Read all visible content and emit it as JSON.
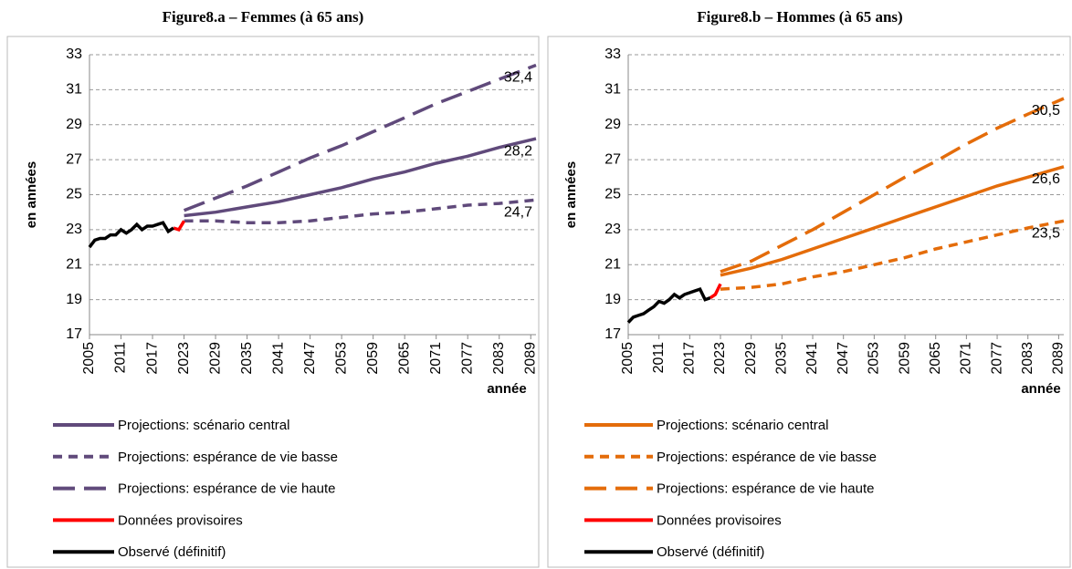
{
  "chart_data": [
    {
      "type": "line",
      "title": "Figure8.a – Femmes (à 65 ans)",
      "y_label": "en années",
      "x_label": "année",
      "xlim": [
        2005,
        2090
      ],
      "xticks": [
        2005,
        2011,
        2017,
        2023,
        2029,
        2035,
        2041,
        2047,
        2053,
        2059,
        2065,
        2071,
        2077,
        2083,
        2089
      ],
      "ylim": [
        17,
        33
      ],
      "yticks": [
        17,
        19,
        21,
        23,
        25,
        27,
        29,
        31,
        33
      ],
      "grid": true,
      "series": [
        {
          "name": "Projections: scénario central",
          "color": "#604a7b",
          "dash": "solid",
          "x": [
            2023,
            2029,
            2035,
            2041,
            2047,
            2053,
            2059,
            2065,
            2071,
            2077,
            2083,
            2090
          ],
          "values": [
            23.8,
            24.0,
            24.3,
            24.6,
            25.0,
            25.4,
            25.9,
            26.3,
            26.8,
            27.2,
            27.7,
            28.2
          ]
        },
        {
          "name": "Projections: espérance de vie basse",
          "color": "#604a7b",
          "dash": "dashed",
          "x": [
            2023,
            2029,
            2035,
            2041,
            2047,
            2053,
            2059,
            2065,
            2071,
            2077,
            2083,
            2090
          ],
          "values": [
            23.5,
            23.5,
            23.4,
            23.4,
            23.5,
            23.7,
            23.9,
            24.0,
            24.2,
            24.4,
            24.5,
            24.7
          ]
        },
        {
          "name": "Projections: espérance de vie haute",
          "color": "#604a7b",
          "dash": "longdash",
          "x": [
            2023,
            2029,
            2035,
            2041,
            2047,
            2053,
            2059,
            2065,
            2071,
            2077,
            2083,
            2090
          ],
          "values": [
            24.1,
            24.8,
            25.5,
            26.3,
            27.1,
            27.8,
            28.6,
            29.4,
            30.2,
            30.9,
            31.6,
            32.4
          ]
        },
        {
          "name": "Données provisoires",
          "color": "#ff0000",
          "dash": "solid",
          "x": [
            2021,
            2022,
            2023
          ],
          "values": [
            23.1,
            23.0,
            23.5
          ]
        },
        {
          "name": "Observé (définitif)",
          "color": "#000000",
          "dash": "solid",
          "x": [
            2005,
            2006,
            2007,
            2008,
            2009,
            2010,
            2011,
            2012,
            2013,
            2014,
            2015,
            2016,
            2017,
            2018,
            2019,
            2020,
            2021
          ],
          "values": [
            22.0,
            22.4,
            22.5,
            22.5,
            22.7,
            22.7,
            23.0,
            22.8,
            23.0,
            23.3,
            23.0,
            23.2,
            23.2,
            23.3,
            23.4,
            22.9,
            23.1
          ]
        }
      ],
      "annotations": [
        {
          "x": 2090,
          "y": 32.4,
          "label": "32,4"
        },
        {
          "x": 2090,
          "y": 28.2,
          "label": "28,2"
        },
        {
          "x": 2090,
          "y": 24.7,
          "label": "24,7"
        }
      ]
    },
    {
      "type": "line",
      "title": "Figure8.b – Hommes (à 65 ans)",
      "y_label": "en années",
      "x_label": "année",
      "xlim": [
        2005,
        2090
      ],
      "xticks": [
        2005,
        2011,
        2017,
        2023,
        2029,
        2035,
        2041,
        2047,
        2053,
        2059,
        2065,
        2071,
        2077,
        2083,
        2089
      ],
      "ylim": [
        17,
        33
      ],
      "yticks": [
        17,
        19,
        21,
        23,
        25,
        27,
        29,
        31,
        33
      ],
      "grid": true,
      "series": [
        {
          "name": "Projections: scénario central",
          "color": "#e46c0a",
          "dash": "solid",
          "x": [
            2023,
            2029,
            2035,
            2041,
            2047,
            2053,
            2059,
            2065,
            2071,
            2077,
            2083,
            2090
          ],
          "values": [
            20.4,
            20.8,
            21.3,
            21.9,
            22.5,
            23.1,
            23.7,
            24.3,
            24.9,
            25.5,
            26.0,
            26.6
          ]
        },
        {
          "name": "Projections: espérance de vie basse",
          "color": "#e46c0a",
          "dash": "dashed",
          "x": [
            2023,
            2029,
            2035,
            2041,
            2047,
            2053,
            2059,
            2065,
            2071,
            2077,
            2083,
            2090
          ],
          "values": [
            19.6,
            19.7,
            19.9,
            20.3,
            20.6,
            21.0,
            21.4,
            21.9,
            22.3,
            22.7,
            23.1,
            23.5
          ]
        },
        {
          "name": "Projections: espérance de vie haute",
          "color": "#e46c0a",
          "dash": "longdash",
          "x": [
            2023,
            2029,
            2035,
            2041,
            2047,
            2053,
            2059,
            2065,
            2071,
            2077,
            2083,
            2090
          ],
          "values": [
            20.6,
            21.2,
            22.1,
            23.0,
            24.0,
            25.0,
            26.0,
            26.9,
            27.9,
            28.8,
            29.6,
            30.5
          ]
        },
        {
          "name": "Données provisoires",
          "color": "#ff0000",
          "dash": "solid",
          "x": [
            2021,
            2022,
            2023
          ],
          "values": [
            19.1,
            19.3,
            19.9
          ]
        },
        {
          "name": "Observé (définitif)",
          "color": "#000000",
          "dash": "solid",
          "x": [
            2005,
            2006,
            2007,
            2008,
            2009,
            2010,
            2011,
            2012,
            2013,
            2014,
            2015,
            2016,
            2017,
            2018,
            2019,
            2020,
            2021
          ],
          "values": [
            17.7,
            18.0,
            18.1,
            18.2,
            18.4,
            18.6,
            18.9,
            18.8,
            19.0,
            19.3,
            19.1,
            19.3,
            19.4,
            19.5,
            19.6,
            19.0,
            19.1
          ]
        }
      ],
      "annotations": [
        {
          "x": 2090,
          "y": 30.5,
          "label": "30,5"
        },
        {
          "x": 2090,
          "y": 26.6,
          "label": "26,6"
        },
        {
          "x": 2090,
          "y": 23.5,
          "label": "23,5"
        }
      ]
    }
  ]
}
